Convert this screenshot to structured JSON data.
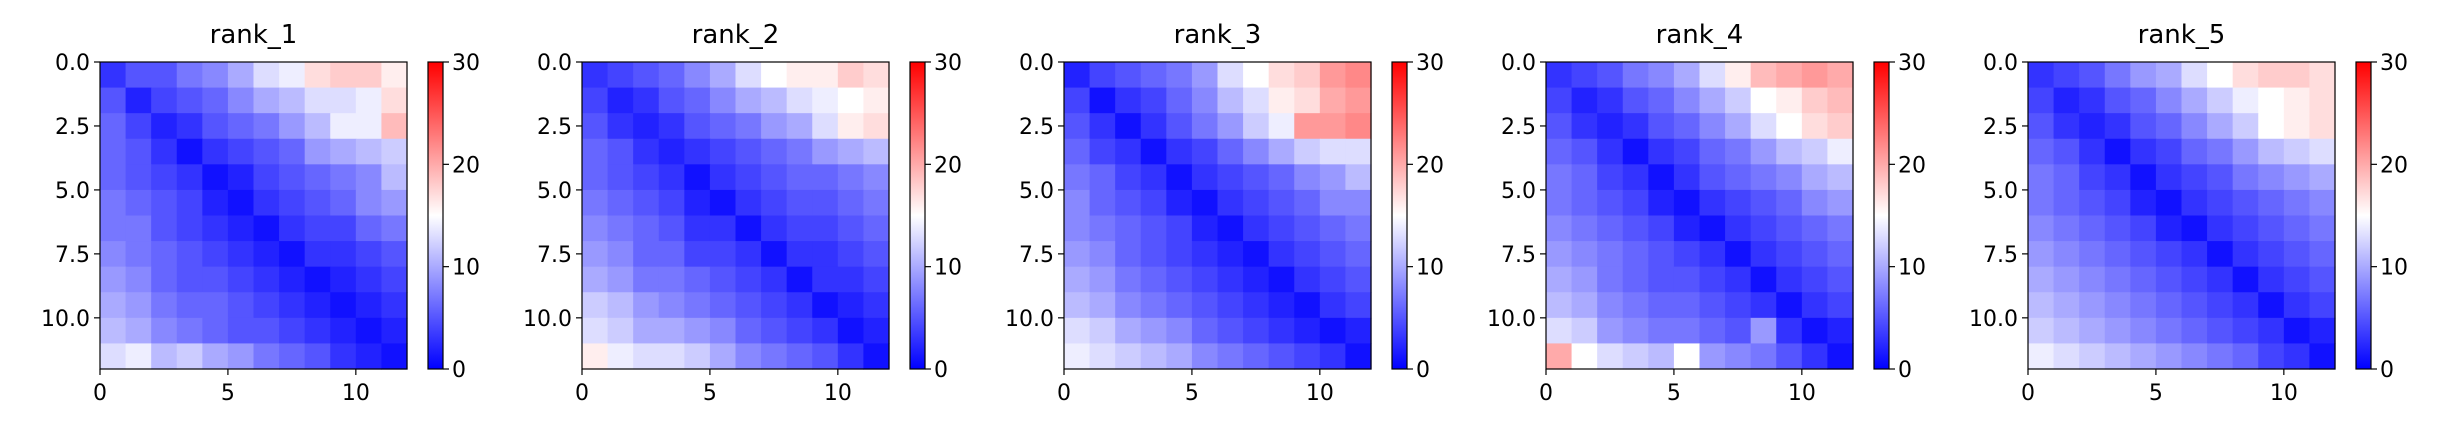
{
  "colorscale": {
    "low": "#0000ff",
    "mid": "#ffffff",
    "high": "#ff0000",
    "vmin": 0,
    "vmax": 30
  },
  "chart_data": [
    {
      "type": "heatmap",
      "title": "rank_1",
      "xlim": [
        0,
        12
      ],
      "ylim": [
        12,
        0
      ],
      "xticks": [
        "0",
        "5",
        "10"
      ],
      "yticks": [
        "0.0",
        "2.5",
        "5.0",
        "7.5",
        "10.0"
      ],
      "colorbar_ticks": [
        "0",
        "10",
        "20",
        "30"
      ],
      "values": [
        [
          3,
          5,
          5,
          7,
          8,
          10,
          13,
          14,
          17,
          18,
          18,
          16
        ],
        [
          5,
          2,
          4,
          5,
          6,
          8,
          10,
          11,
          13,
          13,
          14,
          17
        ],
        [
          6,
          4,
          2,
          3,
          5,
          6,
          7,
          9,
          11,
          14,
          14,
          19
        ],
        [
          6,
          5,
          3,
          1,
          3,
          4,
          5,
          6,
          9,
          10,
          11,
          12
        ],
        [
          6,
          5,
          4,
          3,
          1,
          2,
          4,
          5,
          6,
          7,
          8,
          11
        ],
        [
          7,
          6,
          5,
          4,
          2,
          1,
          3,
          4,
          5,
          6,
          8,
          9
        ],
        [
          7,
          7,
          5,
          4,
          3,
          2,
          1,
          3,
          4,
          4,
          6,
          7
        ],
        [
          8,
          7,
          6,
          5,
          4,
          3,
          2,
          1,
          3,
          3,
          4,
          5
        ],
        [
          9,
          8,
          6,
          5,
          5,
          4,
          3,
          2,
          1,
          2,
          3,
          4
        ],
        [
          10,
          9,
          7,
          6,
          6,
          5,
          4,
          3,
          2,
          1,
          2,
          3
        ],
        [
          11,
          10,
          8,
          7,
          6,
          5,
          5,
          4,
          3,
          2,
          1,
          2
        ],
        [
          13,
          14,
          11,
          12,
          10,
          9,
          7,
          6,
          5,
          3,
          2,
          1
        ]
      ]
    },
    {
      "type": "heatmap",
      "title": "rank_2",
      "xlim": [
        0,
        12
      ],
      "ylim": [
        12,
        0
      ],
      "xticks": [
        "0",
        "5",
        "10"
      ],
      "yticks": [
        "0.0",
        "2.5",
        "5.0",
        "7.5",
        "10.0"
      ],
      "colorbar_ticks": [
        "0",
        "10",
        "20",
        "30"
      ],
      "values": [
        [
          3,
          4,
          5,
          6,
          8,
          10,
          13,
          15,
          16,
          16,
          18,
          17
        ],
        [
          4,
          2,
          3,
          5,
          6,
          8,
          10,
          11,
          13,
          14,
          15,
          16
        ],
        [
          5,
          3,
          2,
          3,
          5,
          6,
          7,
          9,
          10,
          13,
          16,
          17
        ],
        [
          6,
          5,
          3,
          2,
          3,
          4,
          5,
          6,
          7,
          9,
          10,
          11
        ],
        [
          6,
          5,
          4,
          3,
          1,
          3,
          4,
          5,
          6,
          6,
          7,
          8
        ],
        [
          7,
          6,
          5,
          4,
          2,
          1,
          3,
          4,
          5,
          5,
          6,
          7
        ],
        [
          8,
          7,
          6,
          5,
          3,
          3,
          1,
          3,
          4,
          4,
          5,
          6
        ],
        [
          9,
          8,
          6,
          6,
          4,
          4,
          3,
          1,
          3,
          3,
          4,
          5
        ],
        [
          10,
          9,
          7,
          7,
          6,
          5,
          4,
          3,
          1,
          3,
          3,
          4
        ],
        [
          12,
          11,
          9,
          8,
          7,
          6,
          5,
          4,
          3,
          1,
          2,
          3
        ],
        [
          13,
          12,
          10,
          10,
          9,
          8,
          6,
          5,
          4,
          3,
          1,
          2
        ],
        [
          16,
          14,
          13,
          13,
          12,
          10,
          8,
          7,
          6,
          5,
          3,
          1
        ]
      ]
    },
    {
      "type": "heatmap",
      "title": "rank_3",
      "xlim": [
        0,
        12
      ],
      "ylim": [
        12,
        0
      ],
      "xticks": [
        "0",
        "5",
        "10"
      ],
      "yticks": [
        "0.0",
        "2.5",
        "5.0",
        "7.5",
        "10.0"
      ],
      "colorbar_ticks": [
        "0",
        "10",
        "20",
        "30"
      ],
      "values": [
        [
          2,
          4,
          5,
          6,
          7,
          9,
          13,
          15,
          17,
          18,
          21,
          22
        ],
        [
          4,
          1,
          3,
          4,
          6,
          8,
          11,
          13,
          16,
          17,
          20,
          21
        ],
        [
          5,
          3,
          1,
          3,
          5,
          7,
          9,
          12,
          14,
          21,
          21,
          22
        ],
        [
          6,
          4,
          3,
          1,
          3,
          4,
          6,
          8,
          10,
          12,
          13,
          13
        ],
        [
          7,
          6,
          4,
          3,
          1,
          3,
          4,
          5,
          6,
          8,
          9,
          11
        ],
        [
          8,
          6,
          5,
          4,
          2,
          1,
          3,
          4,
          5,
          6,
          8,
          8
        ],
        [
          8,
          7,
          6,
          5,
          4,
          2,
          1,
          3,
          4,
          5,
          6,
          7
        ],
        [
          9,
          8,
          6,
          5,
          4,
          3,
          2,
          1,
          3,
          4,
          5,
          6
        ],
        [
          10,
          9,
          7,
          6,
          5,
          4,
          3,
          2,
          1,
          3,
          4,
          5
        ],
        [
          11,
          10,
          8,
          7,
          6,
          5,
          4,
          3,
          2,
          1,
          3,
          4
        ],
        [
          13,
          12,
          10,
          9,
          8,
          6,
          5,
          4,
          3,
          2,
          1,
          2
        ],
        [
          14,
          13,
          12,
          11,
          10,
          8,
          7,
          6,
          5,
          4,
          3,
          1
        ]
      ]
    },
    {
      "type": "heatmap",
      "title": "rank_4",
      "xlim": [
        0,
        12
      ],
      "ylim": [
        12,
        0
      ],
      "xticks": [
        "0",
        "5",
        "10"
      ],
      "yticks": [
        "0.0",
        "2.5",
        "5.0",
        "7.5",
        "10.0"
      ],
      "colorbar_ticks": [
        "0",
        "10",
        "20",
        "30"
      ],
      "values": [
        [
          3,
          4,
          5,
          7,
          8,
          10,
          13,
          16,
          19,
          20,
          21,
          20
        ],
        [
          4,
          2,
          3,
          5,
          6,
          8,
          10,
          12,
          15,
          16,
          18,
          19
        ],
        [
          5,
          3,
          2,
          3,
          5,
          6,
          8,
          10,
          13,
          15,
          17,
          18
        ],
        [
          6,
          5,
          3,
          1,
          3,
          4,
          6,
          7,
          9,
          11,
          12,
          14
        ],
        [
          7,
          6,
          4,
          3,
          1,
          3,
          5,
          6,
          7,
          8,
          10,
          11
        ],
        [
          7,
          6,
          5,
          4,
          2,
          1,
          3,
          4,
          5,
          6,
          8,
          9
        ],
        [
          8,
          7,
          6,
          5,
          4,
          2,
          1,
          3,
          4,
          5,
          6,
          7
        ],
        [
          9,
          8,
          7,
          6,
          5,
          4,
          3,
          1,
          3,
          4,
          5,
          6
        ],
        [
          10,
          9,
          7,
          6,
          5,
          5,
          4,
          3,
          1,
          3,
          4,
          5
        ],
        [
          11,
          10,
          8,
          7,
          6,
          6,
          5,
          4,
          3,
          1,
          3,
          4
        ],
        [
          13,
          12,
          9,
          8,
          7,
          7,
          6,
          5,
          9,
          3,
          1,
          2
        ],
        [
          20,
          15,
          13,
          12,
          11,
          15,
          9,
          8,
          7,
          5,
          3,
          1
        ]
      ]
    },
    {
      "type": "heatmap",
      "title": "rank_5",
      "xlim": [
        0,
        12
      ],
      "ylim": [
        12,
        0
      ],
      "xticks": [
        "0",
        "5",
        "10"
      ],
      "yticks": [
        "0.0",
        "2.5",
        "5.0",
        "7.5",
        "10.0"
      ],
      "colorbar_ticks": [
        "0",
        "10",
        "20",
        "30"
      ],
      "values": [
        [
          3,
          4,
          5,
          7,
          9,
          10,
          13,
          15,
          17,
          18,
          18,
          17
        ],
        [
          4,
          2,
          3,
          5,
          6,
          8,
          10,
          12,
          14,
          15,
          16,
          17
        ],
        [
          5,
          3,
          2,
          3,
          5,
          6,
          8,
          10,
          12,
          15,
          16,
          17
        ],
        [
          6,
          5,
          3,
          1,
          3,
          4,
          6,
          7,
          9,
          11,
          12,
          13
        ],
        [
          7,
          6,
          4,
          3,
          1,
          3,
          4,
          5,
          7,
          8,
          9,
          10
        ],
        [
          7,
          6,
          5,
          4,
          2,
          1,
          3,
          4,
          5,
          6,
          7,
          8
        ],
        [
          8,
          7,
          6,
          5,
          4,
          2,
          1,
          3,
          4,
          5,
          6,
          7
        ],
        [
          9,
          8,
          7,
          6,
          5,
          4,
          3,
          1,
          3,
          4,
          5,
          6
        ],
        [
          10,
          9,
          8,
          7,
          6,
          5,
          4,
          3,
          1,
          3,
          4,
          5
        ],
        [
          11,
          10,
          9,
          8,
          7,
          6,
          5,
          4,
          3,
          1,
          3,
          4
        ],
        [
          12,
          11,
          10,
          9,
          8,
          7,
          6,
          5,
          4,
          3,
          1,
          2
        ],
        [
          14,
          13,
          12,
          11,
          10,
          9,
          8,
          7,
          6,
          4,
          3,
          1
        ]
      ]
    }
  ]
}
